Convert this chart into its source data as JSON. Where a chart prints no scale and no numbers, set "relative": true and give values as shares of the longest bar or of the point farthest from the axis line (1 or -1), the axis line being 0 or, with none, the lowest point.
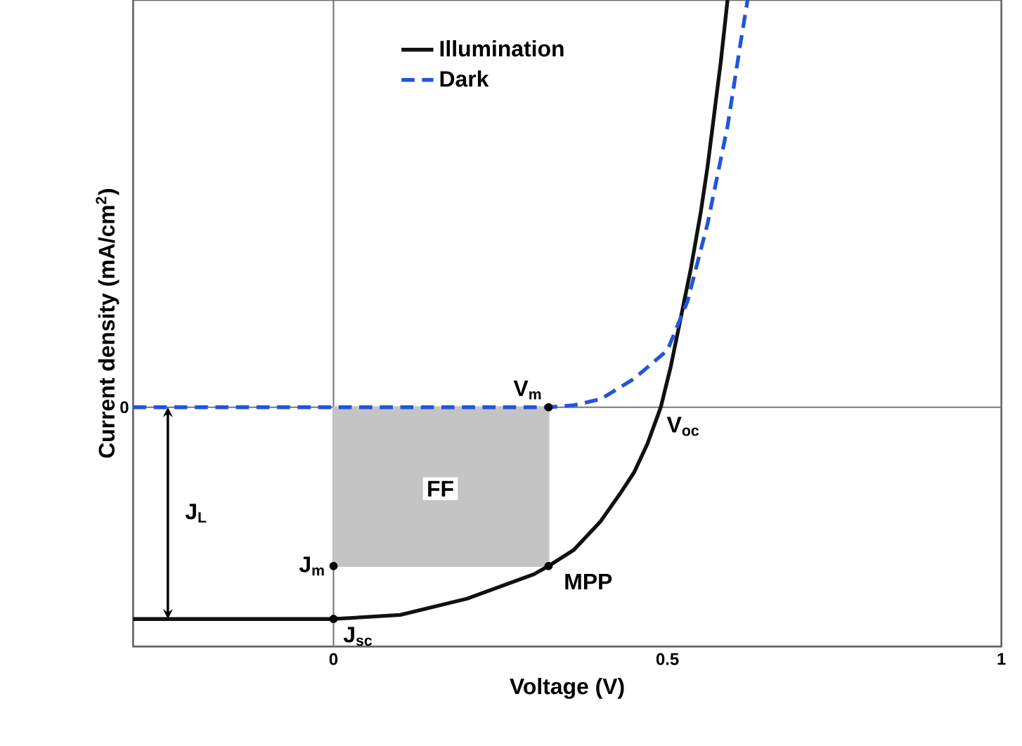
{
  "chart_data": {
    "type": "line",
    "relative": true,
    "xlabel": "Voltage (V)",
    "ylabel": "Current density (mA/cm$^{2}$)",
    "xlim": [
      -0.3,
      1.0
    ],
    "xticks": [
      0,
      0.5,
      1
    ],
    "legend": "top",
    "series": [
      {
        "type": "area",
        "color": "#c4c4c4",
        "x": [
          0,
          0.1,
          0.2,
          0.322
        ],
        "values": [
          -0.39,
          -0.39,
          -0.39,
          -0.39
        ]
      },
      {
        "name": "Illumination",
        "color": "#111111",
        "line_style": "solid",
        "x": [
          -0.3,
          -0.1,
          0,
          0.1,
          0.2,
          0.25,
          0.3,
          0.322,
          0.36,
          0.4,
          0.43,
          0.45,
          0.47,
          0.49,
          0.505,
          0.52,
          0.535,
          0.55,
          0.56,
          0.57,
          0.58,
          0.59
        ],
        "values": [
          -0.52,
          -0.52,
          -0.52,
          -0.51,
          -0.47,
          -0.44,
          -0.41,
          -0.39,
          -0.35,
          -0.28,
          -0.21,
          -0.16,
          -0.09,
          0,
          0.1,
          0.22,
          0.34,
          0.48,
          0.59,
          0.72,
          0.85,
          1.0
        ]
      },
      {
        "name": "Dark",
        "color": "#2255dd",
        "line_style": "dashed",
        "x": [
          -0.3,
          0,
          0.2,
          0.322,
          0.36,
          0.4,
          0.45,
          0.5,
          0.53,
          0.56,
          0.59,
          0.61,
          0.62
        ],
        "values": [
          0,
          0,
          0,
          0,
          0.005,
          0.02,
          0.07,
          0.14,
          0.26,
          0.45,
          0.69,
          0.9,
          1.0
        ]
      }
    ],
    "ref_lines": [
      {
        "axis": "x",
        "value": 0,
        "color": "#777777"
      },
      {
        "axis": "y",
        "value": 0,
        "color": "#777777",
        "label": "0"
      }
    ],
    "annotations": [
      {
        "text": "V$_{m}$",
        "x": 0.322,
        "y": 0
      },
      {
        "text": "V$_{oc}$",
        "x": 0.49,
        "y": 0
      },
      {
        "text": "MPP",
        "x": 0.322,
        "y": -0.39
      },
      {
        "text": "J$_{m}$",
        "x": 0,
        "y": -0.39
      },
      {
        "text": "J$_{sc}$",
        "x": 0,
        "y": -0.52
      },
      {
        "text": "FF",
        "x": 0.16,
        "y": -0.2
      },
      "J$_{L}$"
    ]
  }
}
